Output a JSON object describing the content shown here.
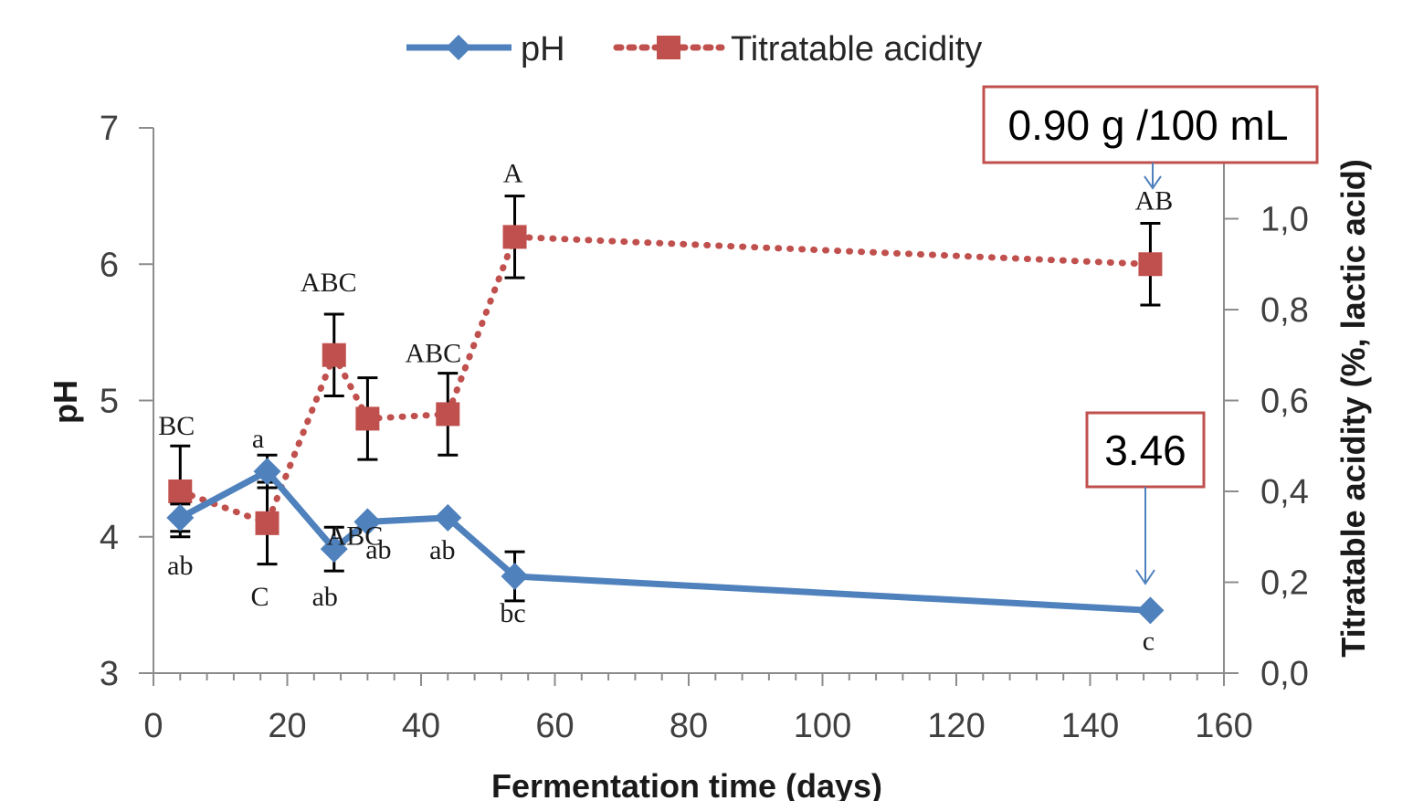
{
  "chart_data": {
    "type": "line",
    "xlabel": "Fermentation time (days)",
    "ylabel": "pH",
    "y2label": "Titratable acidity (%, lactic acid)",
    "xlim": [
      0,
      160
    ],
    "ylim": [
      3,
      7
    ],
    "y2lim": [
      0.0,
      1.2
    ],
    "x_ticks": [
      "0",
      "20",
      "40",
      "60",
      "80",
      "100",
      "120",
      "140",
      "160"
    ],
    "y_ticks": [
      "3",
      "4",
      "5",
      "6",
      "7"
    ],
    "y2_ticks": [
      "0,0",
      "0,2",
      "0,4",
      "0,6",
      "0,8",
      "1,0"
    ],
    "grid": false,
    "legend_position": "top",
    "series": [
      {
        "name": "pH",
        "axis": "left",
        "color": "#4f81bd",
        "line_style": "solid",
        "marker": "diamond",
        "x": [
          4,
          17,
          27,
          32,
          44,
          54,
          149
        ],
        "y": [
          4.14,
          4.48,
          3.91,
          4.11,
          4.14,
          3.71,
          3.46
        ],
        "error": [
          0.1,
          0.12,
          0.16,
          0.0,
          0.0,
          0.18,
          0.0
        ],
        "labels": [
          "ab",
          "a",
          "ab",
          "ab",
          "ab",
          "bc",
          "c"
        ]
      },
      {
        "name": "Titratable acidity",
        "axis": "right",
        "color": "#c0504d",
        "line_style": "dotted",
        "marker": "square",
        "x": [
          4,
          17,
          27,
          32,
          44,
          54,
          149
        ],
        "y": [
          0.4,
          0.33,
          0.7,
          0.56,
          0.57,
          0.96,
          0.9
        ],
        "error": [
          0.1,
          0.09,
          0.09,
          0.09,
          0.09,
          0.09,
          0.09
        ],
        "labels": [
          "BC",
          "C",
          "ABC",
          "ABC",
          "ABC",
          "A",
          "AB"
        ]
      }
    ],
    "callouts": [
      {
        "text": "0.90 g /100 mL",
        "points_to": "Titratable acidity at 149 days"
      },
      {
        "text": "3.46",
        "points_to": "pH at 149 days"
      }
    ]
  }
}
